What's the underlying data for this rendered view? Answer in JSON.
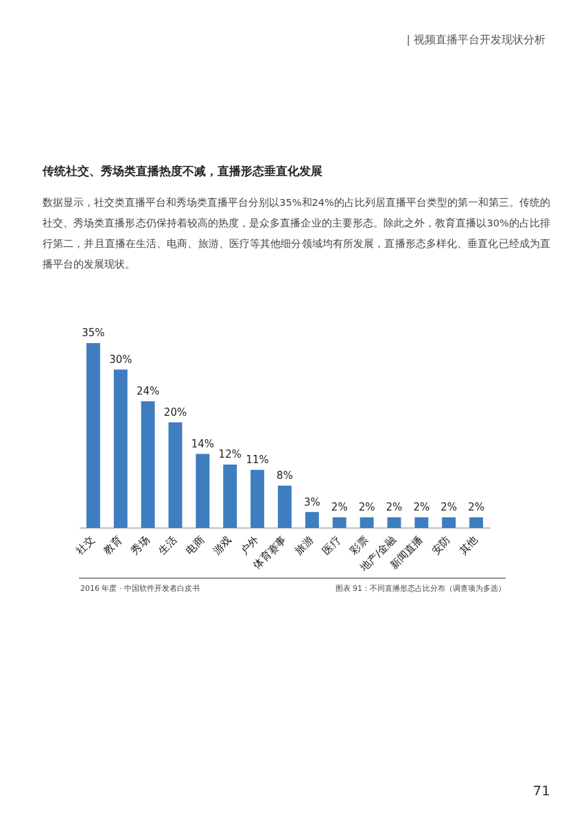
{
  "chart_data": {
    "type": "bar",
    "title": "传统社交、秀场类直播热度不减，直播形态垂直化发展",
    "subtitle": "数据显示，社交类直播平台和秀场类直播平台分别以35%和24%的占比列居直播平台类型的第一和第三。传统的社交、秀场类直播形态仍保持着较高的热度，是众多直播企业的主要形态。除此之外，教育直播以30%的占比排行第二，并且直播在生活、电商、旅游、医疗等其他细分领域均有所发展，直播形态多样化、垂直化已经成为直播平台的发展现状。",
    "categories": [
      "社交",
      "教育",
      "秀场",
      "生活",
      "电商",
      "游戏",
      "户外",
      "体育赛事",
      "旅游",
      "医疗",
      "彩票",
      "地产/金融",
      "新闻直播",
      "安防",
      "其他"
    ],
    "values": [
      35,
      30,
      24,
      20,
      14,
      12,
      11,
      8,
      3,
      2,
      2,
      2,
      2,
      2,
      2
    ],
    "value_labels": [
      "35%",
      "30%",
      "24%",
      "20%",
      "14%",
      "12%",
      "11%",
      "8%",
      "3%",
      "2%",
      "2%",
      "2%",
      "2%",
      "2%",
      "2%"
    ],
    "color": "#3e7dc0",
    "grid": false,
    "legend": false,
    "tick_labels": "x",
    "annotations": [
      "| 视频直播平台开发现状分析",
      "2016 年度 · 中国软件开发者白皮书",
      "图表 91：不同直播形态占比分布（调查项为多选）",
      "71"
    ]
  }
}
